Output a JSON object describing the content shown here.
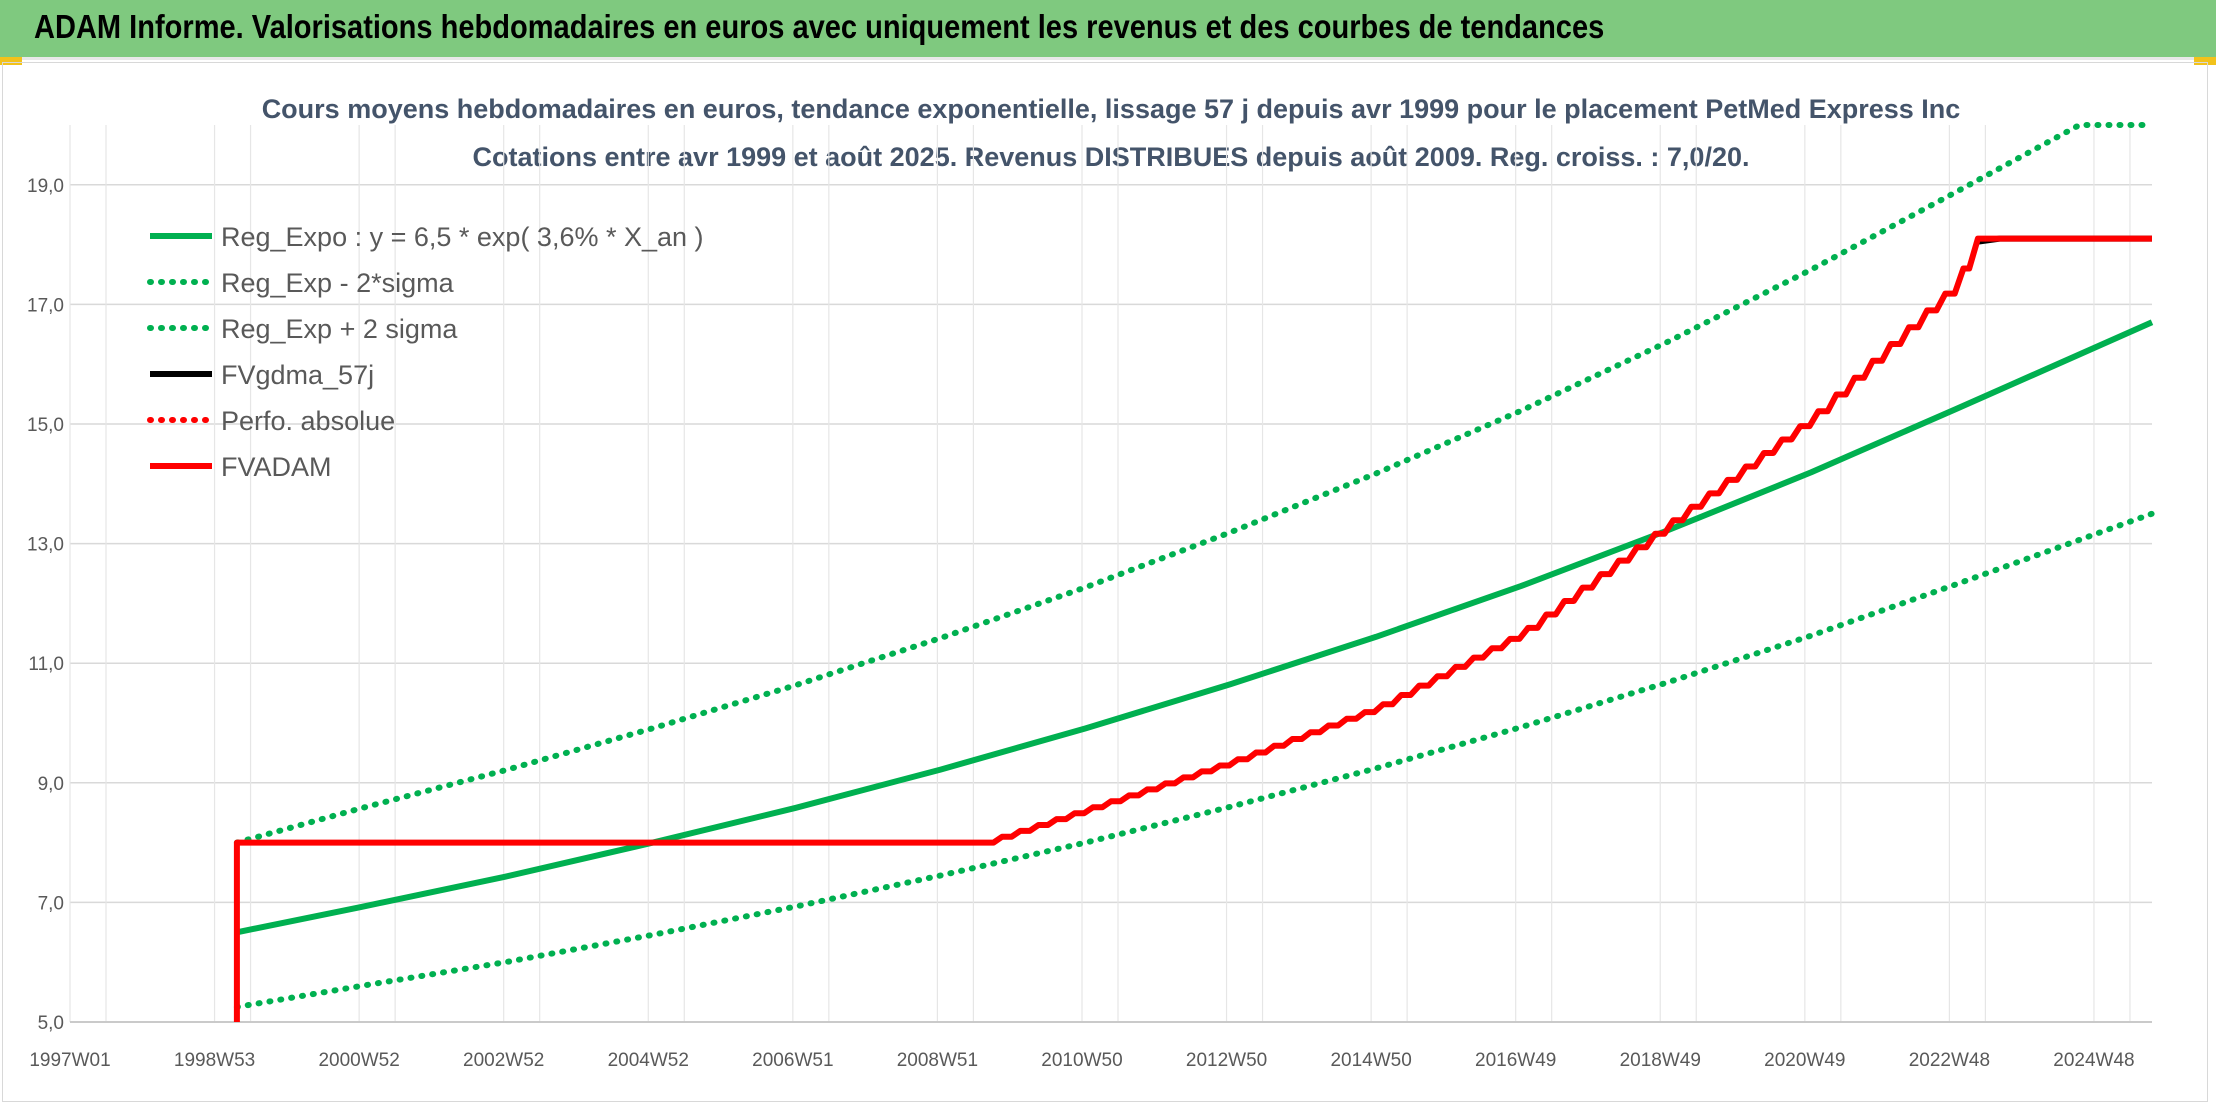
{
  "banner": {
    "title": "ADAM Informe. Valorisations hebdomadaires en euros avec uniquement les revenus et des courbes de tendances",
    "color": "#7fc97f"
  },
  "chart_data": {
    "type": "line",
    "title_line1": "Cours moyens hebdomadaires en euros, tendance exponentielle, lissage 57 j depuis avr 1999 pour le placement PetMed Express Inc",
    "title_line2": "Cotations entre avr 1999 et août 2025. Revenus DISTRIBUES depuis août 2009. Reg. croiss. : 7,0/20.",
    "xlabel": "",
    "ylabel": "",
    "x_tick_labels": [
      "1997W01",
      "1998W53",
      "2000W52",
      "2002W52",
      "2004W52",
      "2006W51",
      "2008W51",
      "2010W50",
      "2012W50",
      "2014W50",
      "2016W49",
      "2018W49",
      "2020W49",
      "2022W48",
      "2024W48"
    ],
    "xlim": [
      1997.0,
      2025.7
    ],
    "ylim": [
      5.0,
      20.0
    ],
    "y_ticks": [
      5.0,
      7.0,
      9.0,
      11.0,
      13.0,
      15.0,
      17.0,
      19.0
    ],
    "y_tick_labels": [
      "5,0",
      "7,0",
      "9,0",
      "11,0",
      "13,0",
      "15,0",
      "17,0",
      "19,0"
    ],
    "grid": true,
    "legend_position": "top-left",
    "series": [
      {
        "name": "Reg_Expo : y = 6,5 * exp( 3,6% *  X_an )",
        "style": "solid",
        "color": "#00b050",
        "x": [
          1999.3,
          2001,
          2003,
          2005,
          2007,
          2009,
          2011,
          2013,
          2015,
          2017,
          2019,
          2021,
          2023,
          2025.7
        ],
        "values": [
          6.5,
          6.92,
          7.43,
          7.99,
          8.58,
          9.22,
          9.91,
          10.65,
          11.44,
          12.29,
          13.21,
          14.19,
          15.25,
          16.7
        ]
      },
      {
        "name": "Reg_Exp - 2*sigma",
        "style": "dotted",
        "color": "#00b050",
        "x": [
          1999.3,
          2001,
          2003,
          2005,
          2007,
          2009,
          2011,
          2013,
          2015,
          2017,
          2019,
          2021,
          2023,
          2025.7
        ],
        "values": [
          5.25,
          5.6,
          6.0,
          6.45,
          6.93,
          7.45,
          8.0,
          8.6,
          9.24,
          9.93,
          10.67,
          11.46,
          12.32,
          13.5
        ]
      },
      {
        "name": "Reg_Exp + 2 sigma",
        "style": "dotted",
        "color": "#00b050",
        "x": [
          1999.3,
          2001,
          2003,
          2005,
          2007,
          2009,
          2011,
          2013,
          2015,
          2017,
          2019,
          2021,
          2023,
          2024.7,
          2025.7
        ],
        "values": [
          8.0,
          8.57,
          9.21,
          9.9,
          10.63,
          11.42,
          12.27,
          13.19,
          14.17,
          15.22,
          16.36,
          17.58,
          18.88,
          20.0,
          20.0
        ]
      },
      {
        "name": "FVgdma_57j",
        "style": "solid",
        "color": "#000000",
        "x": [
          2023.3,
          2023.6,
          2024.0,
          2025.7
        ],
        "values": [
          18.05,
          18.1,
          18.1,
          18.1
        ]
      },
      {
        "name": "Perfo. absolue",
        "style": "dotted",
        "color": "#ff0000",
        "x": [],
        "values": []
      },
      {
        "name": "FVADAM",
        "style": "solid",
        "color": "#ff0000",
        "x": [
          1999.3,
          1999.3,
          2009.6,
          2011,
          2013,
          2015,
          2017,
          2019,
          2021,
          2023,
          2023.3,
          2025.7
        ],
        "values": [
          5.0,
          8.0,
          8.0,
          8.55,
          9.35,
          10.25,
          11.5,
          13.3,
          15.1,
          17.35,
          18.1,
          18.1
        ]
      }
    ]
  }
}
